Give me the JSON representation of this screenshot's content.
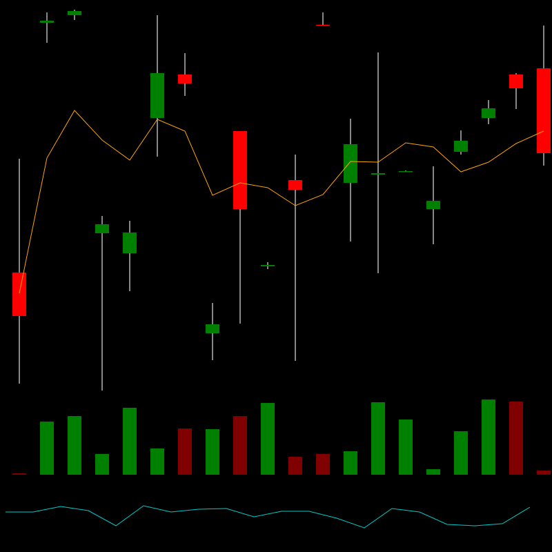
{
  "chart_data": {
    "type": "candlestick",
    "open": [
      185,
      547,
      558,
      242,
      213,
      409,
      472,
      97,
      390,
      194,
      319,
      544,
      315,
      327,
      332,
      277,
      360,
      409,
      472,
      481
    ],
    "high": [
      350,
      562,
      566,
      267,
      260,
      558,
      503,
      141,
      390,
      200,
      356,
      562,
      408,
      504,
      333,
      339,
      391,
      435,
      474,
      543
    ],
    "low": [
      24,
      518,
      551,
      14,
      158,
      353,
      441,
      58,
      111,
      190,
      57,
      543,
      230,
      184,
      331,
      226,
      356,
      400,
      422,
      340
    ],
    "close": [
      122,
      550,
      564,
      255,
      243,
      474,
      459,
      110,
      277,
      196,
      305,
      543,
      371,
      329,
      332,
      289,
      376,
      423,
      452,
      358
    ],
    "ylim": [
      0,
      580
    ],
    "up_color": "#008000",
    "down_color": "#ff0000",
    "wick_color": "#b4b4b4",
    "overlay": {
      "values": [
        155,
        351,
        420,
        377,
        348,
        407,
        390,
        297,
        315,
        308,
        282,
        298,
        346,
        345,
        373,
        367,
        331,
        345,
        372,
        390
      ],
      "color": "#ffa500"
    },
    "volume": {
      "values": [
        2,
        77,
        85,
        30,
        97,
        38,
        67,
        66,
        85,
        104,
        26,
        30,
        34,
        105,
        80,
        8,
        63,
        109,
        106,
        6
      ],
      "ylim": [
        0,
        120
      ],
      "up_color": "#008000",
      "down_color": "#800000"
    },
    "indicator": {
      "values": [
        58,
        58,
        66,
        60,
        38,
        67,
        58,
        62,
        63,
        51,
        59,
        59,
        49,
        35,
        63,
        58,
        40,
        38,
        41,
        65
      ],
      "ylim": [
        0,
        100
      ],
      "color": "#00cccc"
    }
  }
}
